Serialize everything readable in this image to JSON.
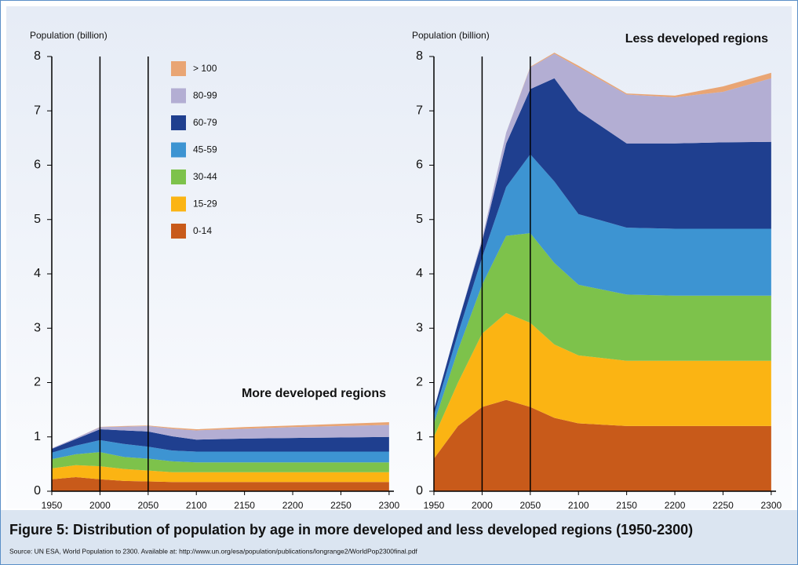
{
  "chart_data": [
    {
      "type": "stacked_area",
      "title": "More developed regions",
      "title_corner": "lower right",
      "ylabel": "Population (billion)",
      "x": [
        1950,
        1975,
        2000,
        2025,
        2050,
        2075,
        2100,
        2150,
        2200,
        2250,
        2300
      ],
      "xlim": [
        1950,
        2305
      ],
      "xticks": [
        1950,
        2000,
        2050,
        2100,
        2150,
        2200,
        2250,
        2300
      ],
      "ylim": [
        0,
        8
      ],
      "yticks": [
        0,
        1,
        2,
        3,
        4,
        5,
        6,
        7,
        8
      ],
      "vlines": [
        2000,
        2050
      ],
      "legend": "upper center",
      "series": [
        {
          "name": "0-14",
          "color": "#c85a1a",
          "values": [
            0.22,
            0.26,
            0.22,
            0.19,
            0.18,
            0.17,
            0.17,
            0.17,
            0.17,
            0.17,
            0.17
          ]
        },
        {
          "name": "15-29",
          "color": "#fbb413",
          "values": [
            0.2,
            0.22,
            0.24,
            0.22,
            0.2,
            0.18,
            0.18,
            0.18,
            0.18,
            0.18,
            0.18
          ]
        },
        {
          "name": "30-44",
          "color": "#7dc24b",
          "values": [
            0.17,
            0.2,
            0.26,
            0.22,
            0.22,
            0.2,
            0.18,
            0.18,
            0.18,
            0.18,
            0.18
          ]
        },
        {
          "name": "45-59",
          "color": "#3d94d2",
          "values": [
            0.12,
            0.16,
            0.22,
            0.24,
            0.22,
            0.2,
            0.2,
            0.2,
            0.2,
            0.2,
            0.2
          ]
        },
        {
          "name": "60-79",
          "color": "#1f3f8f",
          "values": [
            0.07,
            0.12,
            0.2,
            0.25,
            0.28,
            0.26,
            0.22,
            0.24,
            0.25,
            0.26,
            0.27
          ]
        },
        {
          "name": "80-99",
          "color": "#b3aed3",
          "values": [
            0.01,
            0.02,
            0.04,
            0.07,
            0.1,
            0.14,
            0.17,
            0.18,
            0.2,
            0.21,
            0.22
          ]
        },
        {
          "name": "> 100",
          "color": "#e9a574",
          "values": [
            0,
            0,
            0.005,
            0.01,
            0.01,
            0.02,
            0.02,
            0.03,
            0.03,
            0.04,
            0.05
          ]
        }
      ]
    },
    {
      "type": "stacked_area",
      "title": "Less developed regions",
      "title_corner": "upper right",
      "ylabel": "Population (billion)",
      "x": [
        1950,
        1975,
        2000,
        2025,
        2050,
        2075,
        2100,
        2150,
        2200,
        2250,
        2300
      ],
      "xlim": [
        1950,
        2305
      ],
      "xticks": [
        1950,
        2000,
        2050,
        2100,
        2150,
        2200,
        2250,
        2300
      ],
      "ylim": [
        0,
        8
      ],
      "yticks": [
        0,
        1,
        2,
        3,
        4,
        5,
        6,
        7,
        8
      ],
      "vlines": [
        2000,
        2050
      ],
      "series": [
        {
          "name": "0-14",
          "color": "#c85a1a",
          "values": [
            0.6,
            1.2,
            1.55,
            1.68,
            1.55,
            1.35,
            1.25,
            1.2,
            1.2,
            1.2,
            1.2
          ]
        },
        {
          "name": "15-29",
          "color": "#fbb413",
          "values": [
            0.4,
            0.8,
            1.35,
            1.6,
            1.55,
            1.35,
            1.25,
            1.2,
            1.2,
            1.2,
            1.2
          ]
        },
        {
          "name": "30-44",
          "color": "#7dc24b",
          "values": [
            0.25,
            0.6,
            0.9,
            1.42,
            1.65,
            1.5,
            1.3,
            1.22,
            1.2,
            1.2,
            1.2
          ]
        },
        {
          "name": "45-59",
          "color": "#3d94d2",
          "values": [
            0.15,
            0.3,
            0.5,
            0.9,
            1.45,
            1.5,
            1.3,
            1.23,
            1.23,
            1.23,
            1.23
          ]
        },
        {
          "name": "60-79",
          "color": "#1f3f8f",
          "values": [
            0.1,
            0.2,
            0.3,
            0.8,
            1.2,
            1.9,
            1.9,
            1.55,
            1.57,
            1.59,
            1.6
          ]
        },
        {
          "name": "80-99",
          "color": "#b3aed3",
          "values": [
            0,
            0,
            0.05,
            0.2,
            0.4,
            0.45,
            0.8,
            0.9,
            0.85,
            0.93,
            1.17
          ]
        },
        {
          "name": "> 100",
          "color": "#e9a574",
          "values": [
            0,
            0,
            0,
            0,
            0.01,
            0.02,
            0.03,
            0.02,
            0.03,
            0.1,
            0.1
          ]
        }
      ]
    }
  ],
  "caption": {
    "title": "Figure 5: Distribution of population by age in more developed and less developed regions (1950-2300)",
    "source": "Source: UN ESA, World Population to 2300. Available at: http://www.un.org/esa/population/publications/longrange2/WorldPop2300final.pdf"
  }
}
